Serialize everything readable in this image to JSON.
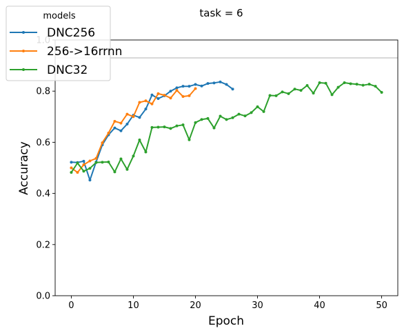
{
  "chart_data": {
    "type": "line",
    "title": "task = 6",
    "xlabel": "Epoch",
    "ylabel": "Accuracy",
    "xlim": [
      -2.6,
      52.6
    ],
    "ylim": [
      0.0,
      1.0
    ],
    "x_ticks": [
      0,
      10,
      20,
      30,
      40,
      50
    ],
    "y_ticks": [
      0.0,
      0.2,
      0.4,
      0.6,
      0.8,
      1.0
    ],
    "reference_line_y": 0.93,
    "grid": false,
    "legend": {
      "title": "models",
      "placement": "top-left"
    },
    "series": [
      {
        "name": "DNC256",
        "color": "#1f77b4",
        "x": [
          0,
          1,
          2,
          3,
          4,
          5,
          6,
          7,
          8,
          9,
          10,
          11,
          12,
          13,
          14,
          15,
          16,
          17,
          18,
          19,
          20,
          21,
          22,
          23,
          24,
          25,
          26
        ],
        "values": [
          0.522,
          0.521,
          0.526,
          0.452,
          0.523,
          0.59,
          0.629,
          0.656,
          0.645,
          0.671,
          0.706,
          0.697,
          0.73,
          0.785,
          0.771,
          0.782,
          0.8,
          0.813,
          0.819,
          0.819,
          0.826,
          0.82,
          0.83,
          0.832,
          0.836,
          0.826,
          0.808
        ]
      },
      {
        "name": "256->16rrnn",
        "color": "#ff7f0e",
        "x": [
          0,
          1,
          2,
          3,
          4,
          5,
          6,
          7,
          8,
          9,
          10,
          11,
          12,
          13,
          14,
          15,
          16,
          17,
          18,
          19,
          20
        ],
        "values": [
          0.5,
          0.482,
          0.512,
          0.527,
          0.537,
          0.598,
          0.636,
          0.682,
          0.675,
          0.71,
          0.7,
          0.756,
          0.762,
          0.75,
          0.79,
          0.784,
          0.773,
          0.803,
          0.779,
          0.782,
          0.81
        ]
      },
      {
        "name": "DNC32",
        "color": "#2ca02c",
        "x": [
          0,
          1,
          2,
          3,
          4,
          5,
          6,
          7,
          8,
          9,
          10,
          11,
          12,
          13,
          14,
          15,
          16,
          17,
          18,
          19,
          20,
          21,
          22,
          23,
          24,
          25,
          26,
          27,
          28,
          29,
          30,
          31,
          32,
          33,
          34,
          35,
          36,
          37,
          38,
          39,
          40,
          41,
          42,
          43,
          44,
          45,
          46,
          47,
          48,
          49,
          50
        ],
        "values": [
          0.482,
          0.519,
          0.487,
          0.498,
          0.521,
          0.522,
          0.523,
          0.484,
          0.535,
          0.494,
          0.546,
          0.609,
          0.562,
          0.658,
          0.659,
          0.66,
          0.654,
          0.664,
          0.668,
          0.61,
          0.677,
          0.689,
          0.693,
          0.656,
          0.702,
          0.689,
          0.696,
          0.71,
          0.703,
          0.716,
          0.739,
          0.72,
          0.783,
          0.782,
          0.797,
          0.79,
          0.808,
          0.803,
          0.822,
          0.792,
          0.833,
          0.831,
          0.786,
          0.815,
          0.833,
          0.829,
          0.827,
          0.823,
          0.827,
          0.819,
          0.795
        ]
      }
    ]
  }
}
